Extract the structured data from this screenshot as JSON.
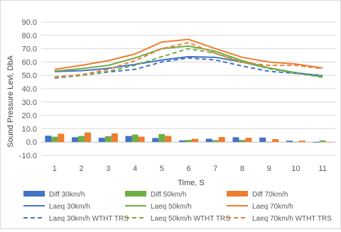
{
  "chart_data": {
    "type": "bar",
    "title": "",
    "xlabel": "Time, S",
    "ylabel": "Sound Pressure Levl, DbA",
    "ylim": [
      -10,
      90
    ],
    "yticks": [
      "-10.0",
      "0.0",
      "10.0",
      "20.0",
      "30.0",
      "40.0",
      "50.0",
      "60.0",
      "70.0",
      "80.0",
      "90.0"
    ],
    "ytick_values": [
      -10,
      0,
      10,
      20,
      30,
      40,
      50,
      60,
      70,
      80,
      90
    ],
    "categories": [
      "1",
      "2",
      "3",
      "4",
      "5",
      "6",
      "7",
      "8",
      "9",
      "10",
      "11"
    ],
    "grid": "horizontal",
    "legend_position": "bottom",
    "series": [
      {
        "name": "Diff 30km/h",
        "kind": "bar",
        "color": "#4472C4",
        "values": [
          4.8,
          3.6,
          3.2,
          4.5,
          3.0,
          1.2,
          2.5,
          3.6,
          3.4,
          1.0,
          -0.5
        ]
      },
      {
        "name": "Diff 50km/h",
        "kind": "bar",
        "color": "#70AD47",
        "values": [
          4.0,
          4.6,
          4.4,
          5.6,
          6.0,
          1.6,
          1.4,
          1.6,
          0.2,
          0.2,
          1.2
        ]
      },
      {
        "name": "Diff 70km/h",
        "kind": "bar",
        "color": "#ED7D31",
        "values": [
          6.2,
          7.2,
          6.5,
          4.0,
          4.6,
          2.4,
          3.8,
          3.2,
          2.2,
          1.0,
          0.0
        ]
      },
      {
        "name": "Laeq 30km/h",
        "kind": "line",
        "color": "#4472C4",
        "dash": false,
        "values": [
          52.8,
          53.5,
          55.2,
          58.2,
          61.5,
          64.0,
          63.5,
          60.0,
          55.5,
          52.0,
          49.5
        ]
      },
      {
        "name": "Laeq 50km/h",
        "kind": "line",
        "color": "#70AD47",
        "dash": false,
        "values": [
          53.2,
          55.0,
          57.5,
          63.0,
          70.0,
          72.0,
          68.0,
          61.0,
          55.5,
          52.0,
          49.0
        ]
      },
      {
        "name": "Laeq 70km/h",
        "kind": "line",
        "color": "#ED7D31",
        "dash": false,
        "values": [
          54.5,
          57.5,
          61.0,
          66.0,
          75.0,
          77.0,
          70.0,
          63.5,
          60.0,
          58.5,
          55.5
        ]
      },
      {
        "name": "Laeq 30km/h WTHT TRS",
        "kind": "line",
        "color": "#4472C4",
        "dash": true,
        "values": [
          48.0,
          50.0,
          52.5,
          54.5,
          60.0,
          63.0,
          61.5,
          57.0,
          53.0,
          51.5,
          50.0
        ]
      },
      {
        "name": "Laeq 50km/h WTHT TRS",
        "kind": "line",
        "color": "#70AD47",
        "dash": true,
        "values": [
          48.5,
          50.0,
          53.0,
          57.5,
          64.0,
          70.0,
          66.5,
          60.0,
          55.0,
          51.5,
          48.5
        ]
      },
      {
        "name": "Laeq 70km/h WTHT TRS",
        "kind": "line",
        "color": "#ED7D31",
        "dash": true,
        "values": [
          48.8,
          50.5,
          54.5,
          61.0,
          70.0,
          74.5,
          66.5,
          59.5,
          57.5,
          57.5,
          55.0
        ]
      }
    ]
  }
}
